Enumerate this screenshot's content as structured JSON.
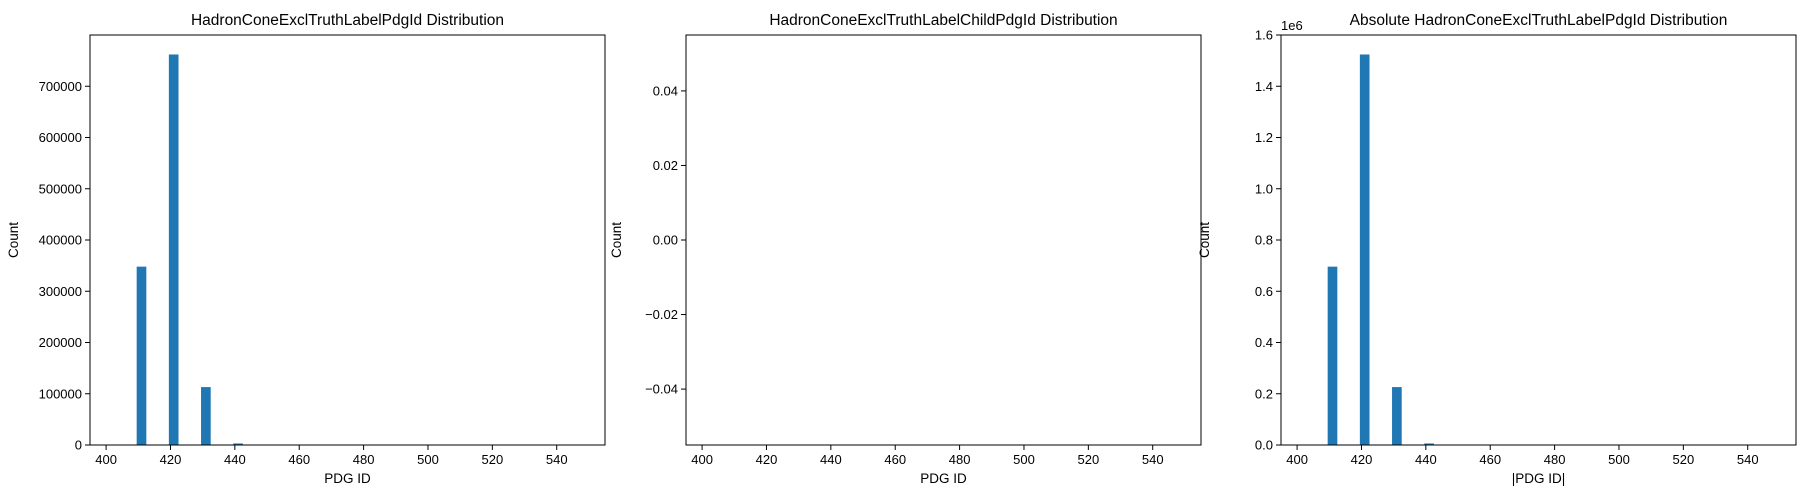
{
  "chart_data": [
    {
      "type": "bar",
      "title": "HadronConeExclTruthLabelPdgId Distribution",
      "xlabel": "PDG ID",
      "ylabel": "Count",
      "xlim": [
        395,
        555
      ],
      "ylim": [
        0,
        800000
      ],
      "xticks": [
        "400",
        "420",
        "440",
        "460",
        "480",
        "500",
        "520",
        "540"
      ],
      "yticks": [
        "0",
        "100000",
        "200000",
        "300000",
        "400000",
        "500000",
        "600000",
        "700000"
      ],
      "offset_text": "",
      "bars": [
        {
          "x": 411,
          "value": 348000
        },
        {
          "x": 421,
          "value": 762000
        },
        {
          "x": 431,
          "value": 113000
        },
        {
          "x": 441,
          "value": 3000
        }
      ],
      "bar_width": 3,
      "color": "#1f77b4"
    },
    {
      "type": "bar",
      "title": "HadronConeExclTruthLabelChildPdgId Distribution",
      "xlabel": "PDG ID",
      "ylabel": "Count",
      "xlim": [
        395,
        555
      ],
      "ylim": [
        -0.055,
        0.055
      ],
      "xticks": [
        "400",
        "420",
        "440",
        "460",
        "480",
        "500",
        "520",
        "540"
      ],
      "yticks": [
        "−0.04",
        "−0.02",
        "0.00",
        "0.02",
        "0.04"
      ],
      "offset_text": "",
      "bars": [],
      "bar_width": 3,
      "color": "#1f77b4"
    },
    {
      "type": "bar",
      "title": "Absolute HadronConeExclTruthLabelPdgId Distribution",
      "xlabel": "|PDG ID|",
      "ylabel": "Count",
      "xlim": [
        395,
        555
      ],
      "ylim": [
        0,
        1.6
      ],
      "xticks": [
        "400",
        "420",
        "440",
        "460",
        "480",
        "500",
        "520",
        "540"
      ],
      "yticks": [
        "0.0",
        "0.2",
        "0.4",
        "0.6",
        "0.8",
        "1.0",
        "1.2",
        "1.4",
        "1.6"
      ],
      "offset_text": "1e6",
      "bars": [
        {
          "x": 411,
          "value": 0.696
        },
        {
          "x": 421,
          "value": 1.524
        },
        {
          "x": 431,
          "value": 0.226
        },
        {
          "x": 441,
          "value": 0.006
        }
      ],
      "bar_width": 3,
      "color": "#1f77b4"
    }
  ]
}
